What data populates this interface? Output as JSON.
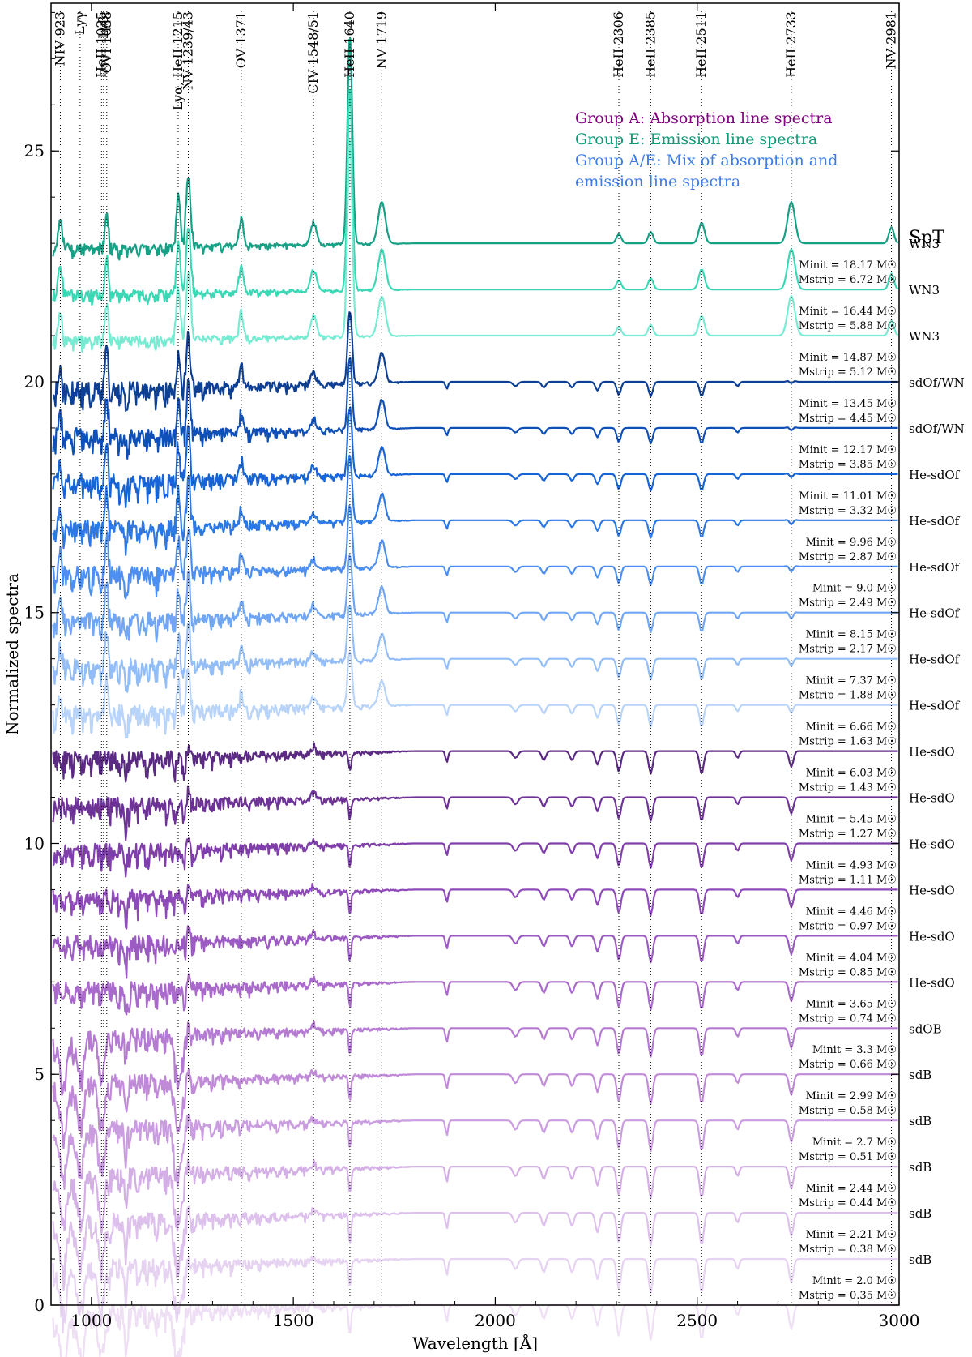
{
  "chart_data": {
    "type": "line",
    "xlabel": "Wavelength [Å]",
    "ylabel": "Normalized spectra",
    "xlim": [
      900,
      3000
    ],
    "ylim": [
      0,
      28.2
    ],
    "x_ticks": [
      1000,
      1500,
      2000,
      2500,
      3000
    ],
    "y_ticks": [
      0,
      5,
      10,
      15,
      20,
      25
    ],
    "spt_header": "SpT",
    "legend": [
      {
        "text": "Group A: Absorption line spectra",
        "color": "#800080"
      },
      {
        "text": "Group E: Emission line spectra",
        "color": "#0f9b78"
      },
      {
        "text": "Group A/E: Mix of absorption and",
        "color": "#3b7bea"
      },
      {
        "text": "emission line spectra",
        "color": "#3b7bea"
      }
    ],
    "line_markers": [
      {
        "x": 923,
        "label": "NIV 923"
      },
      {
        "x": 972,
        "label": "Lyγ"
      },
      {
        "x": 1025,
        "label": "HeII 1025"
      },
      {
        "x": 1030,
        "label": "Lyβ,"
      },
      {
        "x": 1038,
        "label": "OVI 1038"
      },
      {
        "x": 1215,
        "label": "Lyα, HeII 1215"
      },
      {
        "x": 1240,
        "label": "NV 1239/43"
      },
      {
        "x": 1371,
        "label": "OV 1371"
      },
      {
        "x": 1550,
        "label": "CIV 1548/51"
      },
      {
        "x": 1640,
        "label": "HeII 1640"
      },
      {
        "x": 1719,
        "label": "NV 1719"
      },
      {
        "x": 2306,
        "label": "HeII 2306"
      },
      {
        "x": 2385,
        "label": "HeII 2385"
      },
      {
        "x": 2511,
        "label": "HeII 2511"
      },
      {
        "x": 2733,
        "label": "HeII 2733"
      },
      {
        "x": 2981,
        "label": "NV 2981"
      }
    ],
    "series": [
      {
        "offset": 23,
        "spt": "WN3",
        "m_init": "",
        "m_strip": "",
        "group": "E",
        "color": "#16a085"
      },
      {
        "offset": 22,
        "spt": "WN3",
        "m_init": "18.17",
        "m_strip": "6.72",
        "group": "E",
        "color": "#3ad8b4"
      },
      {
        "offset": 21,
        "spt": "WN3",
        "m_init": "16.44",
        "m_strip": "5.88",
        "group": "E",
        "color": "#78ecd3"
      },
      {
        "offset": 20,
        "spt": "sdOf/WN",
        "m_init": "14.87",
        "m_strip": "5.12",
        "group": "AE",
        "color": "#0d3f94"
      },
      {
        "offset": 19,
        "spt": "sdOf/WN",
        "m_init": "13.45",
        "m_strip": "4.45",
        "group": "AE",
        "color": "#0f4fb8"
      },
      {
        "offset": 18,
        "spt": "He-sdOf",
        "m_init": "12.17",
        "m_strip": "3.85",
        "group": "AE",
        "color": "#1764d6"
      },
      {
        "offset": 17,
        "spt": "He-sdOf",
        "m_init": "11.01",
        "m_strip": "3.32",
        "group": "AE",
        "color": "#2c79e6"
      },
      {
        "offset": 16,
        "spt": "He-sdOf",
        "m_init": "9.96",
        "m_strip": "2.87",
        "group": "AE",
        "color": "#4d8ff0"
      },
      {
        "offset": 15,
        "spt": "He-sdOf",
        "m_init": "9.0",
        "m_strip": "2.49",
        "group": "AE",
        "color": "#70a6f4"
      },
      {
        "offset": 14,
        "spt": "He-sdOf",
        "m_init": "8.15",
        "m_strip": "2.17",
        "group": "AE",
        "color": "#93bdf7"
      },
      {
        "offset": 13,
        "spt": "He-sdOf",
        "m_init": "7.37",
        "m_strip": "1.88",
        "group": "AE",
        "color": "#b8d4fa"
      },
      {
        "offset": 12,
        "spt": "He-sdO",
        "m_init": "6.66",
        "m_strip": "1.63",
        "group": "A",
        "color": "#5b2a82"
      },
      {
        "offset": 11,
        "spt": "He-sdO",
        "m_init": "6.03",
        "m_strip": "1.43",
        "group": "A",
        "color": "#6e3396"
      },
      {
        "offset": 10,
        "spt": "He-sdO",
        "m_init": "5.45",
        "m_strip": "1.27",
        "group": "A",
        "color": "#7f3ea9"
      },
      {
        "offset": 9,
        "spt": "He-sdO",
        "m_init": "4.93",
        "m_strip": "1.11",
        "group": "A",
        "color": "#8e4ab8"
      },
      {
        "offset": 8,
        "spt": "He-sdO",
        "m_init": "4.46",
        "m_strip": "0.97",
        "group": "A",
        "color": "#9c5ac3"
      },
      {
        "offset": 7,
        "spt": "He-sdO",
        "m_init": "4.04",
        "m_strip": "0.85",
        "group": "A",
        "color": "#a96acb"
      },
      {
        "offset": 6,
        "spt": "sdOB",
        "m_init": "3.65",
        "m_strip": "0.74",
        "group": "A",
        "color": "#b57ad2"
      },
      {
        "offset": 5,
        "spt": "sdB",
        "m_init": "3.3",
        "m_strip": "0.66",
        "group": "A",
        "color": "#c08ad9"
      },
      {
        "offset": 4,
        "spt": "sdB",
        "m_init": "2.99",
        "m_strip": "0.58",
        "group": "A",
        "color": "#ca9ce0"
      },
      {
        "offset": 3,
        "spt": "sdB",
        "m_init": "2.7",
        "m_strip": "0.51",
        "group": "A",
        "color": "#d4afe6"
      },
      {
        "offset": 2,
        "spt": "sdB",
        "m_init": "2.44",
        "m_strip": "0.44",
        "group": "A",
        "color": "#ddc1ec"
      },
      {
        "offset": 1,
        "spt": "sdB",
        "m_init": "2.21",
        "m_strip": "0.38",
        "group": "A",
        "color": "#e6d2f1"
      },
      {
        "offset": 0,
        "spt": "",
        "m_init": "2.0",
        "m_strip": "0.35",
        "group": "A",
        "color": "#eedff5"
      }
    ]
  }
}
